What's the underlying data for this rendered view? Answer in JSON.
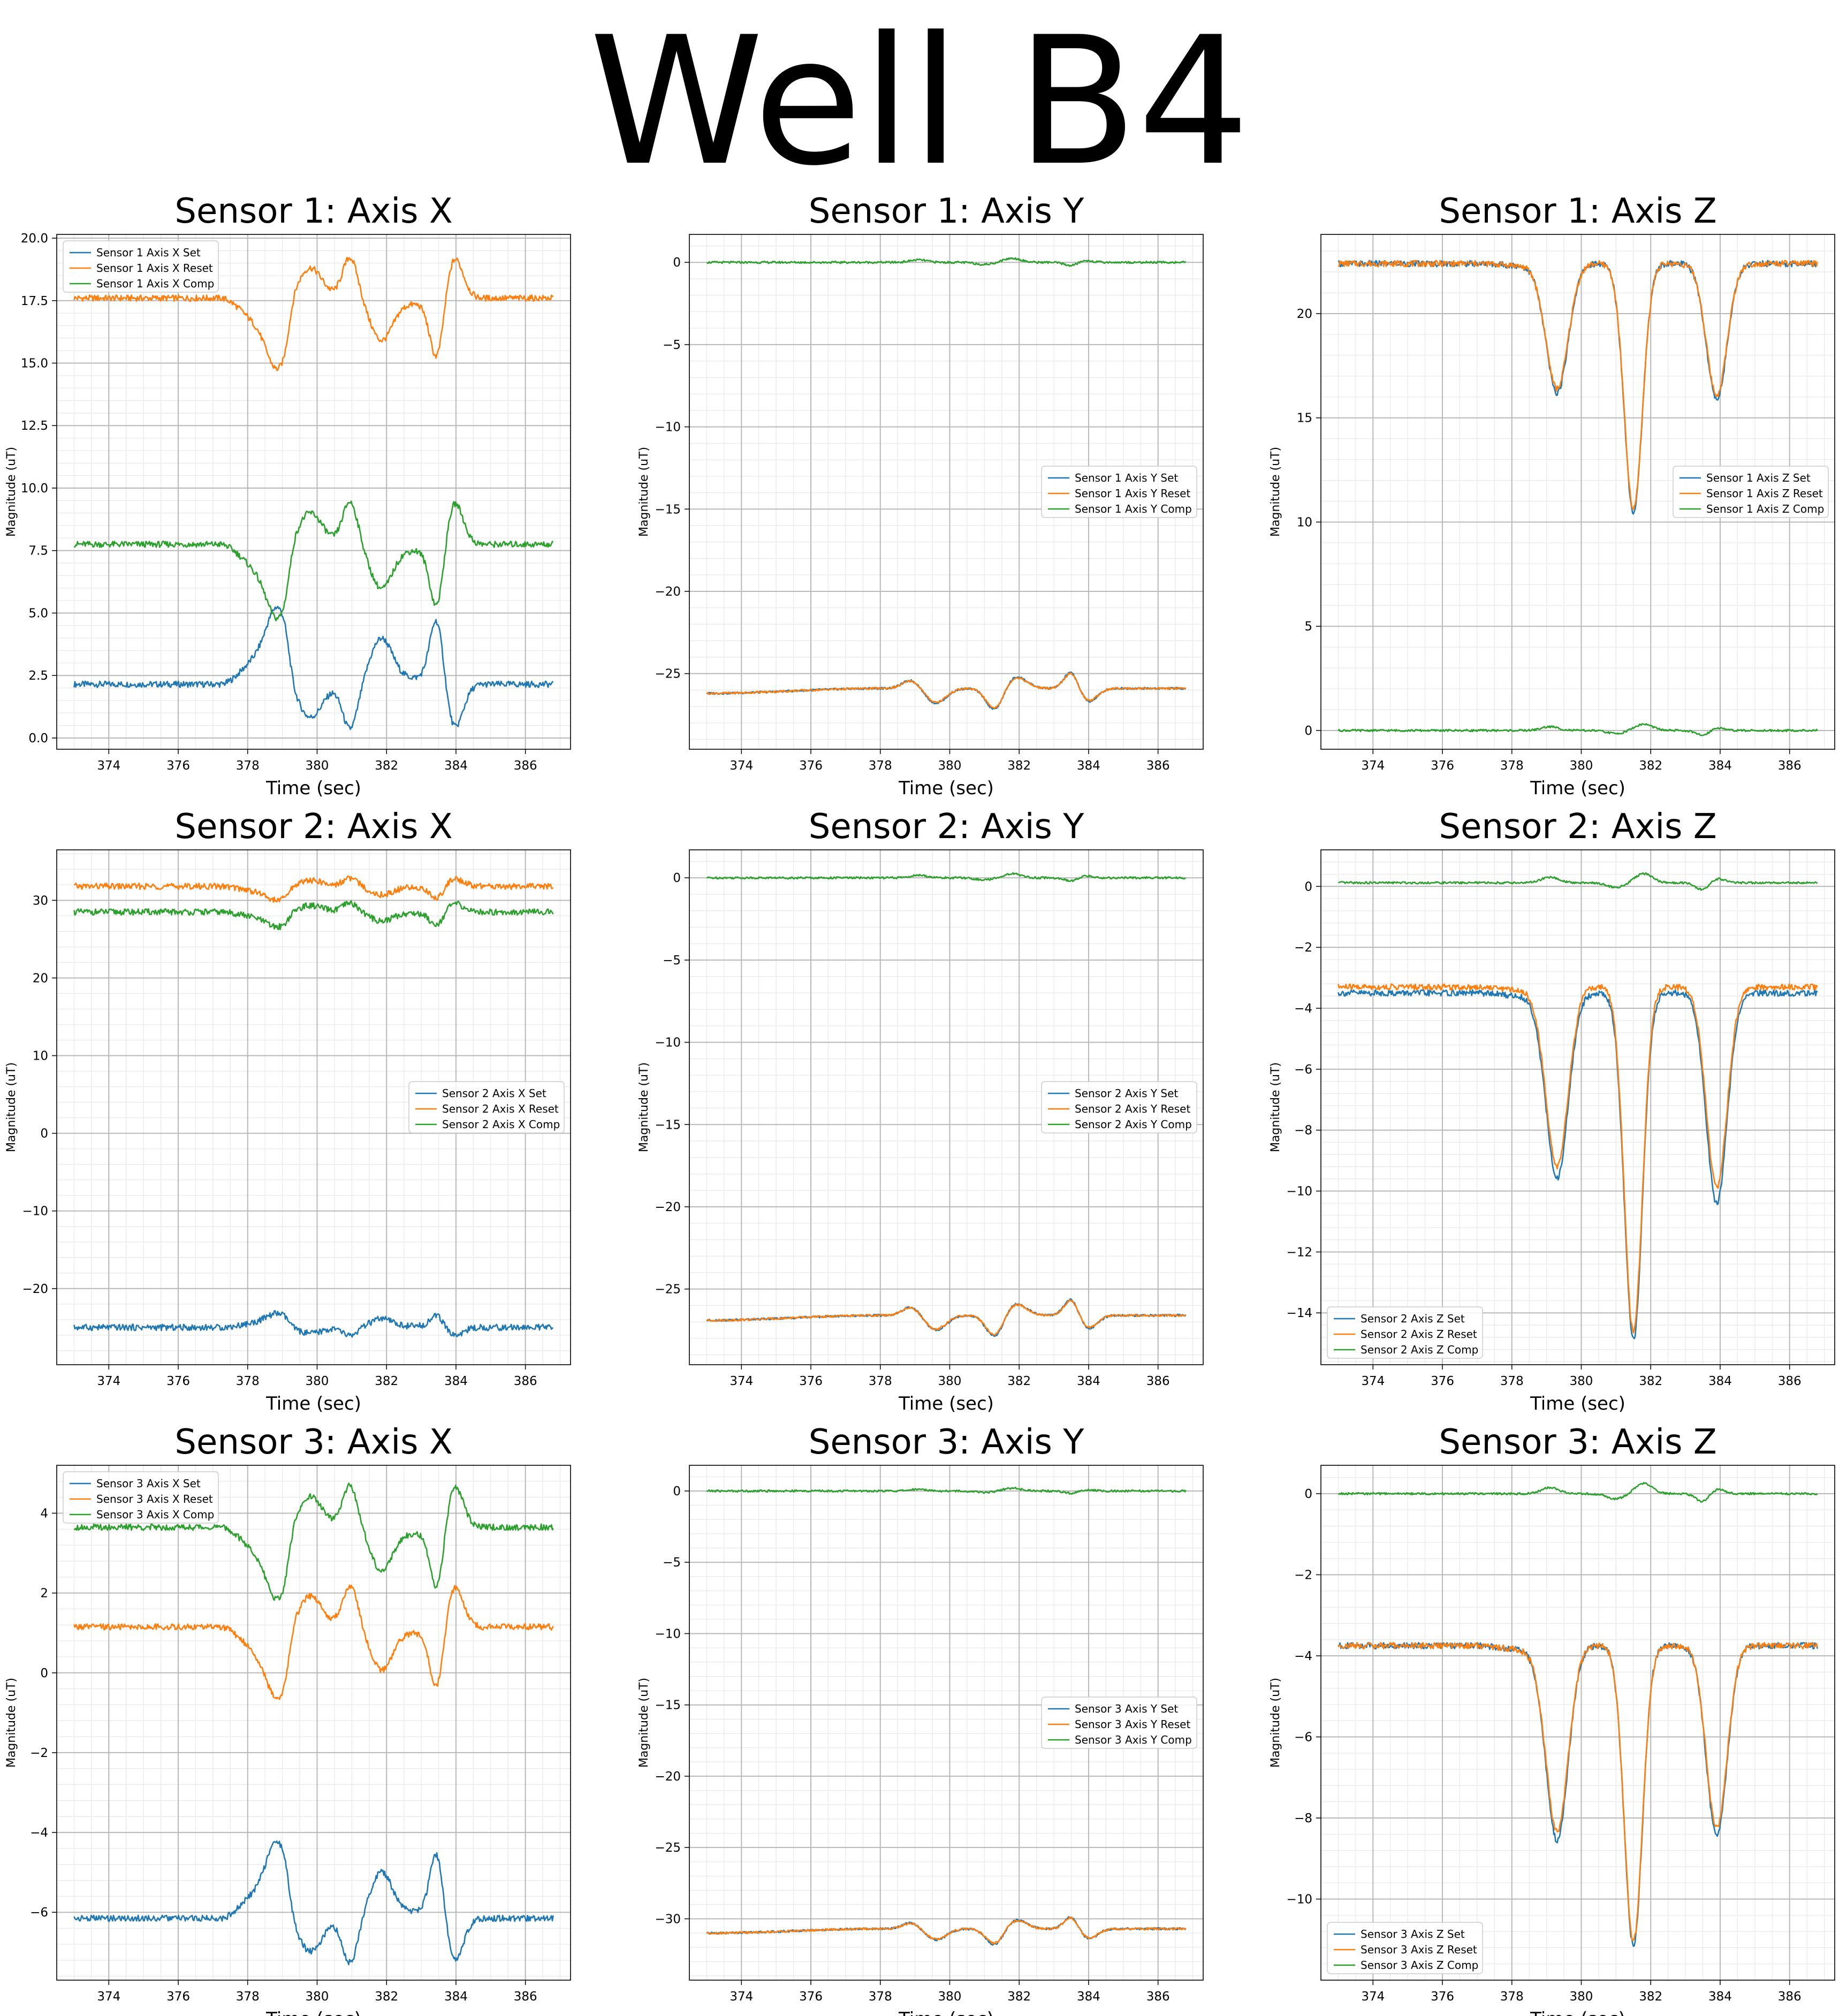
{
  "page_title": "Well B4",
  "colors": {
    "set": "#1f77b4",
    "reset": "#ff7f0e",
    "comp": "#2ca02c"
  },
  "chart_data": [
    {
      "type": "line",
      "title": "Sensor 1: Axis X",
      "xlabel": "Time (sec)",
      "ylabel": "Magnitude (uT)",
      "xlim": [
        372.5,
        387.3
      ],
      "ylim": [
        -0.45,
        20.15
      ],
      "xticks": [
        374,
        376,
        378,
        380,
        382,
        384,
        386
      ],
      "xtick_labels": [
        "374",
        "376",
        "378",
        "380",
        "382",
        "384",
        "386"
      ],
      "yticks": [
        0,
        2.5,
        5,
        7.5,
        10,
        12.5,
        15,
        17.5,
        20
      ],
      "ytick_labels": [
        "0.0",
        "2.5",
        "5.0",
        "7.5",
        "10.0",
        "12.5",
        "15.0",
        "17.5",
        "20.0"
      ],
      "legend_position": "upper-left",
      "grid": true,
      "shape": "sx",
      "series": [
        {
          "name": "Sensor 1 Axis X Set",
          "baseline": 2.15,
          "scale": 2.4
        },
        {
          "name": "Sensor 1 Axis X Reset",
          "baseline": 17.6,
          "scale": -2.2
        },
        {
          "name": "Sensor 1 Axis X Comp",
          "baseline": 7.75,
          "scale": -2.3
        }
      ]
    },
    {
      "type": "line",
      "title": "Sensor 1: Axis Y",
      "xlabel": "Time (sec)",
      "ylabel": "Magnitude (uT)",
      "xlim": [
        372.5,
        387.3
      ],
      "ylim": [
        -29.6,
        1.7
      ],
      "xticks": [
        374,
        376,
        378,
        380,
        382,
        384,
        386
      ],
      "xtick_labels": [
        "374",
        "376",
        "378",
        "380",
        "382",
        "384",
        "386"
      ],
      "yticks": [
        -25,
        -20,
        -15,
        -10,
        -5,
        0
      ],
      "ytick_labels": [
        "−25",
        "−20",
        "−15",
        "−10",
        "−5",
        "0"
      ],
      "legend_position": "center-right",
      "grid": true,
      "shape": "sy",
      "series": [
        {
          "name": "Sensor 1 Axis Y Set",
          "baseline": -26.2,
          "scale": 1.5
        },
        {
          "name": "Sensor 1 Axis Y Reset",
          "baseline": -26.2,
          "scale": 1.4
        },
        {
          "name": "Sensor 1 Axis Y Comp",
          "baseline": 0.0,
          "scale": 0.25
        }
      ]
    },
    {
      "type": "line",
      "title": "Sensor 1: Axis Z",
      "xlabel": "Time (sec)",
      "ylabel": "Magnitude (uT)",
      "xlim": [
        372.5,
        387.3
      ],
      "ylim": [
        -0.9,
        23.8
      ],
      "xticks": [
        374,
        376,
        378,
        380,
        382,
        384,
        386
      ],
      "xtick_labels": [
        "374",
        "376",
        "378",
        "380",
        "382",
        "384",
        "386"
      ],
      "yticks": [
        0,
        5,
        10,
        15,
        20
      ],
      "ytick_labels": [
        "0",
        "5",
        "10",
        "15",
        "20"
      ],
      "legend_position": "center-right",
      "grid": true,
      "shape": "z",
      "series": [
        {
          "name": "Sensor 1 Axis Z Set",
          "baseline": 22.4,
          "depths": [
            6.2,
            11.9,
            6.5
          ]
        },
        {
          "name": "Sensor 1 Axis Z Reset",
          "baseline": 22.4,
          "depths": [
            6.0,
            11.8,
            6.3
          ]
        },
        {
          "name": "Sensor 1 Axis Z Comp",
          "baseline": 0.0,
          "scale": 0.3
        }
      ]
    },
    {
      "type": "line",
      "title": "Sensor 2: Axis X",
      "xlabel": "Time (sec)",
      "ylabel": "Magnitude (uT)",
      "xlim": [
        372.5,
        387.3
      ],
      "ylim": [
        -29.8,
        36.5
      ],
      "xticks": [
        374,
        376,
        378,
        380,
        382,
        384,
        386
      ],
      "xtick_labels": [
        "374",
        "376",
        "378",
        "380",
        "382",
        "384",
        "386"
      ],
      "yticks": [
        -20,
        -10,
        0,
        10,
        20,
        30
      ],
      "ytick_labels": [
        "−20",
        "−10",
        "0",
        "10",
        "20",
        "30"
      ],
      "legend_position": "center-right",
      "grid": true,
      "shape": "sx",
      "series": [
        {
          "name": "Sensor 2 Axis X Set",
          "baseline": -25.0,
          "scale": 1.4
        },
        {
          "name": "Sensor 2 Axis X Reset",
          "baseline": 31.8,
          "scale": -1.4
        },
        {
          "name": "Sensor 2 Axis X Comp",
          "baseline": 28.5,
          "scale": -1.5
        }
      ]
    },
    {
      "type": "line",
      "title": "Sensor 2: Axis Y",
      "xlabel": "Time (sec)",
      "ylabel": "Magnitude (uT)",
      "xlim": [
        372.5,
        387.3
      ],
      "ylim": [
        -29.6,
        1.7
      ],
      "xticks": [
        374,
        376,
        378,
        380,
        382,
        384,
        386
      ],
      "xtick_labels": [
        "374",
        "376",
        "378",
        "380",
        "382",
        "384",
        "386"
      ],
      "yticks": [
        -25,
        -20,
        -15,
        -10,
        -5,
        0
      ],
      "ytick_labels": [
        "−25",
        "−20",
        "−15",
        "−10",
        "−5",
        "0"
      ],
      "legend_position": "center-right",
      "grid": true,
      "shape": "sy",
      "series": [
        {
          "name": "Sensor 2 Axis Y Set",
          "baseline": -26.9,
          "scale": 1.5
        },
        {
          "name": "Sensor 2 Axis Y Reset",
          "baseline": -26.9,
          "scale": 1.4
        },
        {
          "name": "Sensor 2 Axis Y Comp",
          "baseline": 0.0,
          "scale": 0.25
        }
      ]
    },
    {
      "type": "line",
      "title": "Sensor 2: Axis Z",
      "xlabel": "Time (sec)",
      "ylabel": "Magnitude (uT)",
      "xlim": [
        372.5,
        387.3
      ],
      "ylim": [
        -15.7,
        1.2
      ],
      "xticks": [
        374,
        376,
        378,
        380,
        382,
        384,
        386
      ],
      "xtick_labels": [
        "374",
        "376",
        "378",
        "380",
        "382",
        "384",
        "386"
      ],
      "yticks": [
        -14,
        -12,
        -10,
        -8,
        -6,
        -4,
        -2,
        0
      ],
      "ytick_labels": [
        "−14",
        "−12",
        "−10",
        "−8",
        "−6",
        "−4",
        "−2",
        "0"
      ],
      "legend_position": "lower-left",
      "grid": true,
      "shape": "z",
      "series": [
        {
          "name": "Sensor 2 Axis Z Set",
          "baseline": -3.5,
          "depths": [
            6.1,
            11.4,
            6.9
          ]
        },
        {
          "name": "Sensor 2 Axis Z Reset",
          "baseline": -3.3,
          "depths": [
            5.9,
            11.3,
            6.6
          ]
        },
        {
          "name": "Sensor 2 Axis Z Comp",
          "baseline": 0.12,
          "scale": 0.3
        }
      ]
    },
    {
      "type": "line",
      "title": "Sensor 3: Axis X",
      "xlabel": "Time (sec)",
      "ylabel": "Magnitude (uT)",
      "xlim": [
        372.5,
        387.3
      ],
      "ylim": [
        -7.7,
        5.2
      ],
      "xticks": [
        374,
        376,
        378,
        380,
        382,
        384,
        386
      ],
      "xtick_labels": [
        "374",
        "376",
        "378",
        "380",
        "382",
        "384",
        "386"
      ],
      "yticks": [
        -6,
        -4,
        -2,
        0,
        2,
        4
      ],
      "ytick_labels": [
        "−6",
        "−4",
        "−2",
        "0",
        "2",
        "4"
      ],
      "legend_position": "upper-left",
      "grid": true,
      "shape": "sx",
      "series": [
        {
          "name": "Sensor 3 Axis X Set",
          "baseline": -6.15,
          "scale": 1.5
        },
        {
          "name": "Sensor 3 Axis X Reset",
          "baseline": 1.15,
          "scale": -1.4
        },
        {
          "name": "Sensor 3 Axis X Comp",
          "baseline": 3.65,
          "scale": -1.4
        }
      ]
    },
    {
      "type": "line",
      "title": "Sensor 3: Axis Y",
      "xlabel": "Time (sec)",
      "ylabel": "Magnitude (uT)",
      "xlim": [
        372.5,
        387.3
      ],
      "ylim": [
        -34.3,
        1.8
      ],
      "xticks": [
        374,
        376,
        378,
        380,
        382,
        384,
        386
      ],
      "xtick_labels": [
        "374",
        "376",
        "378",
        "380",
        "382",
        "384",
        "386"
      ],
      "yticks": [
        -30,
        -25,
        -20,
        -15,
        -10,
        -5,
        0
      ],
      "ytick_labels": [
        "−30",
        "−25",
        "−20",
        "−15",
        "−10",
        "−5",
        "0"
      ],
      "legend_position": "center-right",
      "grid": true,
      "shape": "sy",
      "series": [
        {
          "name": "Sensor 3 Axis Y Set",
          "baseline": -31.0,
          "scale": 1.3
        },
        {
          "name": "Sensor 3 Axis Y Reset",
          "baseline": -31.0,
          "scale": 1.2
        },
        {
          "name": "Sensor 3 Axis Y Comp",
          "baseline": 0.0,
          "scale": 0.2
        }
      ]
    },
    {
      "type": "line",
      "title": "Sensor 3: Axis Z",
      "xlabel": "Time (sec)",
      "ylabel": "Magnitude (uT)",
      "xlim": [
        372.5,
        387.3
      ],
      "ylim": [
        -12.0,
        0.7
      ],
      "xticks": [
        374,
        376,
        378,
        380,
        382,
        384,
        386
      ],
      "xtick_labels": [
        "374",
        "376",
        "378",
        "380",
        "382",
        "384",
        "386"
      ],
      "yticks": [
        -10,
        -8,
        -6,
        -4,
        -2,
        0
      ],
      "ytick_labels": [
        "−10",
        "−8",
        "−6",
        "−4",
        "−2",
        "0"
      ],
      "legend_position": "lower-left",
      "grid": true,
      "shape": "z",
      "series": [
        {
          "name": "Sensor 3 Axis Z Set",
          "baseline": -3.75,
          "depths": [
            4.8,
            7.4,
            4.7
          ]
        },
        {
          "name": "Sensor 3 Axis Z Reset",
          "baseline": -3.75,
          "depths": [
            4.6,
            7.3,
            4.5
          ]
        },
        {
          "name": "Sensor 3 Axis Z Comp",
          "baseline": 0.0,
          "scale": 0.25
        }
      ]
    }
  ]
}
